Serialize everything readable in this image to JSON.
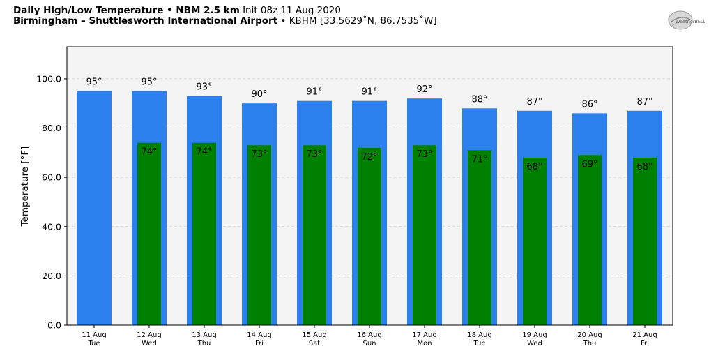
{
  "header": {
    "title_bold": "Daily High/Low Temperature • NBM 2.5 km",
    "init": "Init 08z 11 Aug 2020",
    "location_bold": "Birmingham – Shuttlesworth International Airport",
    "station": "• KBHM [33.5629˚N, 86.7535˚W]"
  },
  "logo": {
    "text": "WeatherBELL"
  },
  "colors": {
    "high": "#2b80ee",
    "low": "#008000",
    "plot_bg": "#f4f4f4",
    "grid": "#cfcfcf"
  },
  "chart_data": {
    "type": "bar",
    "ylabel": "Temperature [°F]",
    "ylim": [
      0,
      113
    ],
    "yticks": [
      "0.0",
      "20.0",
      "40.0",
      "60.0",
      "80.0",
      "100.0"
    ],
    "grid": true,
    "categories": [
      [
        "11 Aug",
        "Tue"
      ],
      [
        "12 Aug",
        "Wed"
      ],
      [
        "13 Aug",
        "Thu"
      ],
      [
        "14 Aug",
        "Fri"
      ],
      [
        "15 Aug",
        "Sat"
      ],
      [
        "16 Aug",
        "Sun"
      ],
      [
        "17 Aug",
        "Mon"
      ],
      [
        "18 Aug",
        "Tue"
      ],
      [
        "19 Aug",
        "Wed"
      ],
      [
        "20 Aug",
        "Thu"
      ],
      [
        "21 Aug",
        "Fri"
      ]
    ],
    "series": [
      {
        "values": [
          95,
          95,
          93,
          90,
          91,
          91,
          92,
          88,
          87,
          86,
          87
        ],
        "labels": [
          "95°",
          "95°",
          "93°",
          "90°",
          "91°",
          "91°",
          "92°",
          "88°",
          "87°",
          "86°",
          "87°"
        ]
      },
      {
        "values": [
          null,
          74,
          74,
          73,
          73,
          72,
          73,
          71,
          68,
          69,
          68
        ],
        "labels": [
          "",
          "74°",
          "74°",
          "73°",
          "73°",
          "72°",
          "73°",
          "71°",
          "68°",
          "69°",
          "68°"
        ]
      }
    ]
  }
}
